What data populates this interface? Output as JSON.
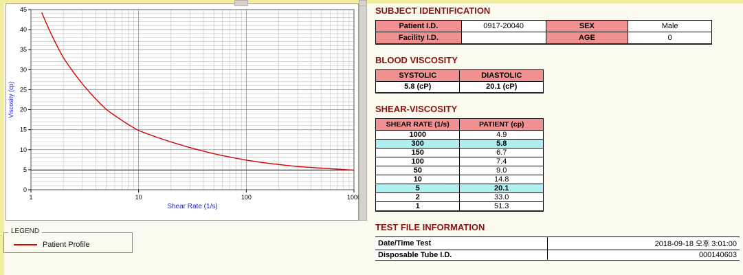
{
  "colors": {
    "heading": "#8B1212",
    "table_header_bg": "#F19090",
    "highlight_bg": "#AFEFEF",
    "series_red": "#D40000",
    "axis_label_blue": "#2222CC"
  },
  "legend": {
    "box_label": "LEGEND",
    "items": [
      {
        "label": "Patient Profile",
        "color": "#D40000"
      }
    ]
  },
  "subject": {
    "title": "SUBJECT IDENTIFICATION",
    "rows": [
      {
        "label": "Patient I.D.",
        "value": "0917-20040",
        "label2": "SEX",
        "value2": "Male"
      },
      {
        "label": "Facility I.D.",
        "value": "",
        "label2": "AGE",
        "value2": "0"
      }
    ]
  },
  "blood_viscosity": {
    "title": "BLOOD VISCOSITY",
    "headers": [
      "SYSTOLIC",
      "DIASTOLIC"
    ],
    "values": [
      "5.8 (cP)",
      "20.1 (cP)"
    ]
  },
  "shear_viscosity": {
    "title": "SHEAR-VISCOSITY",
    "headers": [
      "SHEAR RATE (1/s)",
      "PATIENT (cp)"
    ],
    "rows": [
      {
        "rate": "1000",
        "value": "4.9",
        "highlight": false
      },
      {
        "rate": "300",
        "value": "5.8",
        "highlight": true
      },
      {
        "rate": "150",
        "value": "6.7",
        "highlight": false
      },
      {
        "rate": "100",
        "value": "7.4",
        "highlight": false
      },
      {
        "rate": "50",
        "value": "9.0",
        "highlight": false
      },
      {
        "rate": "10",
        "value": "14.8",
        "highlight": false
      },
      {
        "rate": "5",
        "value": "20.1",
        "highlight": true
      },
      {
        "rate": "2",
        "value": "33.0",
        "highlight": false
      },
      {
        "rate": "1",
        "value": "51.3",
        "highlight": false
      }
    ]
  },
  "test_file": {
    "title": "TEST FILE INFORMATION",
    "rows": [
      {
        "label": "Date/Time Test",
        "value": "2018-09-18 오후 3:01:00"
      },
      {
        "label": "Disposable Tube I.D.",
        "value": "000140603"
      }
    ]
  },
  "chart_data": {
    "type": "line",
    "title": "",
    "xlabel": "Shear Rate (1/s)",
    "ylabel": "Viscosity (cp)",
    "x_scale": "log",
    "xlim": [
      1,
      1000
    ],
    "ylim": [
      0,
      45
    ],
    "yticks": [
      0,
      5,
      10,
      15,
      20,
      25,
      30,
      35,
      40,
      45
    ],
    "xticks": [
      1,
      10,
      100,
      1000
    ],
    "grid": true,
    "legend_position": "bottom-left",
    "baseline_y": 4.9,
    "series": [
      {
        "name": "Patient Profile",
        "color": "#D40000",
        "x": [
          1,
          2,
          5,
          10,
          50,
          100,
          150,
          300,
          1000
        ],
        "y": [
          51.3,
          33.0,
          20.1,
          14.8,
          9.0,
          7.4,
          6.7,
          5.8,
          4.9
        ]
      }
    ]
  }
}
